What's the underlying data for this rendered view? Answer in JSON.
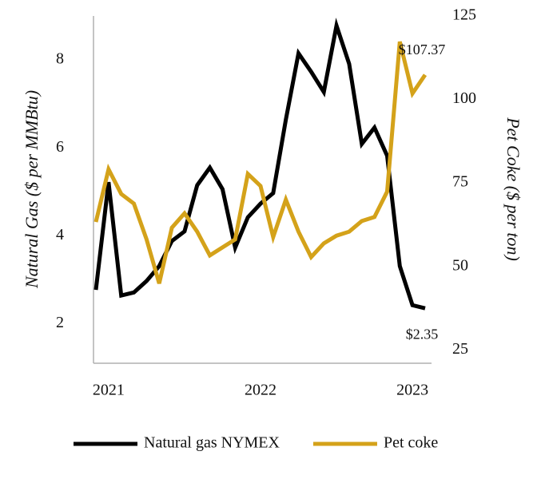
{
  "chart_data": {
    "type": "line",
    "y_label": "Natural Gas ($ per MMBtu)",
    "y2_label": "Pet Coke ($ per ton)",
    "categories": [
      null,
      "2021",
      null,
      null,
      null,
      null,
      null,
      null,
      null,
      null,
      null,
      null,
      null,
      "2022",
      null,
      null,
      null,
      null,
      null,
      null,
      null,
      null,
      null,
      null,
      null,
      "2023",
      null
    ],
    "series": [
      {
        "name": "Natural gas NYMEX",
        "color": "#000000",
        "axis": "y",
        "values": [
          2.77,
          5.22,
          2.64,
          2.71,
          2.97,
          3.31,
          3.88,
          4.1,
          5.15,
          5.55,
          5.06,
          3.73,
          4.42,
          4.73,
          4.97,
          6.64,
          8.15,
          7.73,
          7.27,
          8.78,
          7.91,
          6.09,
          6.46,
          5.82,
          3.31,
          2.42,
          2.35
        ],
        "value_labels": [
          null,
          null,
          null,
          null,
          null,
          null,
          null,
          null,
          null,
          null,
          null,
          null,
          null,
          null,
          null,
          null,
          null,
          null,
          null,
          null,
          null,
          null,
          null,
          null,
          null,
          null,
          "$2.35"
        ]
      },
      {
        "name": "Pet coke",
        "color": "#d4a21a",
        "axis": "y2",
        "values": [
          63.3,
          79.1,
          71.7,
          68.8,
          58.1,
          44.9,
          61.6,
          65.9,
          60.4,
          53.3,
          55.7,
          58.1,
          77.7,
          74.1,
          58.8,
          70.0,
          60.4,
          52.8,
          56.9,
          59.2,
          60.4,
          63.6,
          64.8,
          72.4,
          117.3,
          101.8,
          107.37
        ],
        "value_labels": [
          null,
          null,
          null,
          null,
          null,
          null,
          null,
          null,
          null,
          null,
          null,
          null,
          null,
          null,
          null,
          null,
          null,
          null,
          null,
          null,
          null,
          null,
          null,
          null,
          null,
          null,
          "$107.37"
        ]
      }
    ],
    "ylim": [
      1.1,
      9
    ],
    "yticks": [
      2,
      4,
      6,
      8
    ],
    "y2lim": [
      21,
      125
    ],
    "y2ticks": [
      25,
      50,
      75,
      100,
      125
    ],
    "legend": "bottom"
  }
}
